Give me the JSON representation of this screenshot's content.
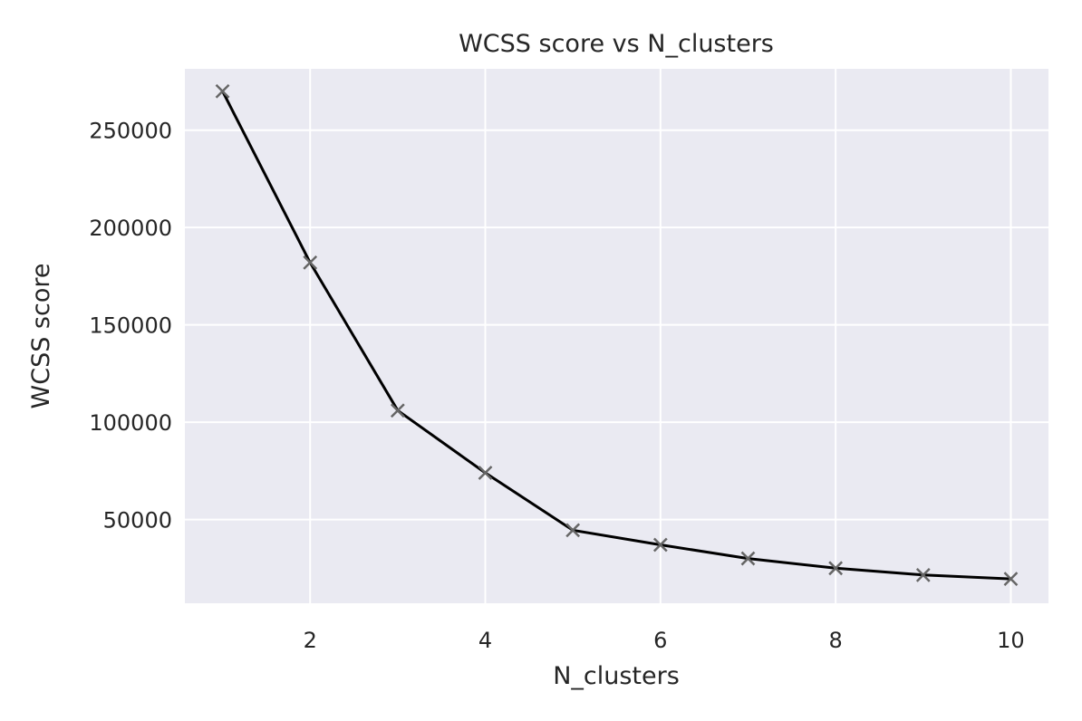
{
  "chart_data": {
    "type": "line",
    "title": "WCSS score vs N_clusters",
    "xlabel": "N_clusters",
    "ylabel": "WCSS score",
    "x": [
      1,
      2,
      3,
      4,
      5,
      6,
      7,
      8,
      9,
      10
    ],
    "series": [
      {
        "values": [
          270000,
          182000,
          106000,
          74000,
          44500,
          37000,
          30000,
          25000,
          21500,
          19500
        ],
        "line_color": "#000000",
        "marker": "x",
        "marker_color": "#666666"
      }
    ],
    "xlim": [
      0.57,
      10.43
    ],
    "ylim": [
      7000,
      281500
    ],
    "xticks": [
      2,
      4,
      6,
      8,
      10
    ],
    "yticks": [
      50000,
      100000,
      150000,
      200000,
      250000
    ],
    "grid": true,
    "background": "#eaeaf2",
    "grid_color": "#ffffff"
  }
}
